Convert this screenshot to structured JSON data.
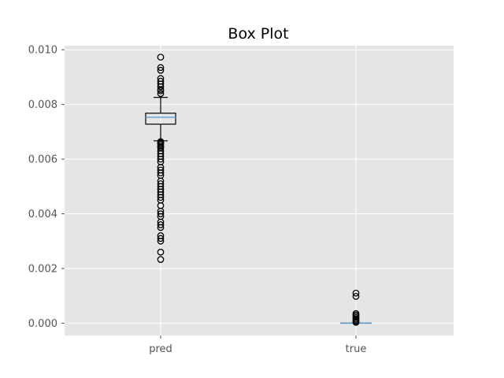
{
  "chart_data": {
    "type": "box",
    "title": "Box Plot",
    "xlabel": "",
    "ylabel": "",
    "ylim": [
      -0.00045,
      0.01015
    ],
    "yticks": [
      0.0,
      0.002,
      0.004,
      0.006,
      0.008,
      0.01
    ],
    "ytick_labels": [
      "0.000",
      "0.002",
      "0.004",
      "0.006",
      "0.008",
      "0.010"
    ],
    "grid": true,
    "categories": [
      "pred",
      "true"
    ],
    "boxes": [
      {
        "label": "pred",
        "whisker_low": 0.00667,
        "q1": 0.00728,
        "median": 0.00753,
        "q3": 0.00768,
        "whisker_high": 0.00826,
        "outliers": [
          0.00973,
          0.00935,
          0.00925,
          0.00895,
          0.00885,
          0.00875,
          0.00865,
          0.00855,
          0.0085,
          0.0084,
          0.00664,
          0.0066,
          0.00655,
          0.0065,
          0.00645,
          0.0064,
          0.0063,
          0.0062,
          0.0061,
          0.006,
          0.0059,
          0.0057,
          0.0056,
          0.0055,
          0.0054,
          0.0052,
          0.0051,
          0.005,
          0.0049,
          0.0048,
          0.0047,
          0.0046,
          0.0045,
          0.0043,
          0.0041,
          0.004,
          0.0039,
          0.0037,
          0.0036,
          0.0035,
          0.0032,
          0.0031,
          0.003,
          0.0026,
          0.00233
        ]
      },
      {
        "label": "true",
        "whisker_low": 0.0,
        "q1": 0.0,
        "median": 0.0,
        "q3": 0.0,
        "whisker_high": 0.0,
        "outliers": [
          0.0011,
          0.00098,
          0.00035,
          0.0003,
          0.00025,
          0.0002,
          0.00015,
          0.0001,
          6e-05,
          3e-05
        ]
      }
    ],
    "colors": {
      "plot_background": "#e5e5e5",
      "grid": "#ffffff",
      "box_edge": "#000000",
      "median": "#5a9ed6",
      "axis_text": "#555555",
      "title_text": "#000000"
    }
  }
}
